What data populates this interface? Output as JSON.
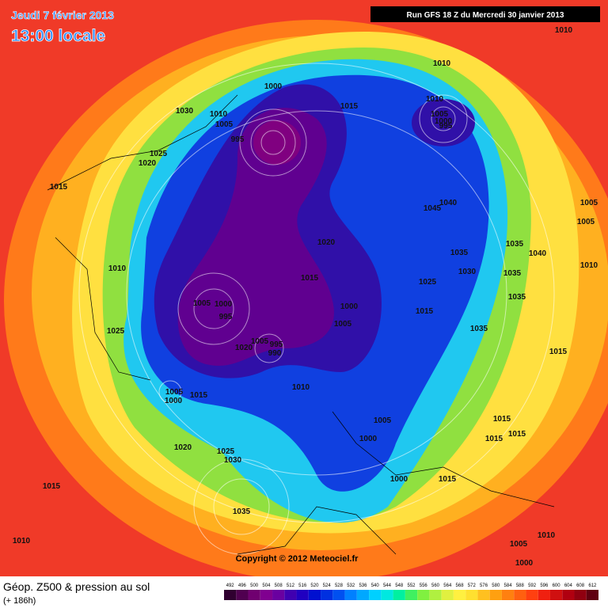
{
  "header": {
    "date": "Jeudi 7 février 2013",
    "time": "13:00 locale",
    "run": "Run GFS 18 Z du Mercredi 30 janvier 2013"
  },
  "map": {
    "copyright": "Copyright © 2012 Meteociel.fr",
    "pressure_labels": [
      1010,
      1010,
      1000,
      1015,
      1030,
      1010,
      1005,
      1010,
      1005,
      1000,
      995,
      995,
      1025,
      1020,
      1015,
      1040,
      1045,
      1005,
      1005,
      1035,
      1040,
      1020,
      1035,
      1010,
      1015,
      1030,
      1025,
      1035,
      1010,
      1005,
      1000,
      1035,
      1000,
      1015,
      995,
      1005,
      1035,
      1025,
      1005,
      995,
      1020,
      990,
      1015,
      1010,
      1005,
      1015,
      1000,
      1005,
      1015,
      1015,
      1000,
      1015,
      1020,
      1025,
      1030,
      1015,
      1000,
      1015,
      1035,
      1010,
      1010,
      1005,
      1000
    ]
  },
  "legend": {
    "title": "Géop. Z500 & pression au sol",
    "lead_time": "(+ 186h)",
    "scale": [
      492,
      496,
      500,
      504,
      508,
      512,
      516,
      520,
      524,
      528,
      532,
      536,
      540,
      544,
      548,
      552,
      556,
      560,
      564,
      568,
      572,
      576,
      580,
      584,
      588,
      592,
      596,
      600,
      604,
      608,
      612
    ],
    "colors": [
      "#300030",
      "#500050",
      "#700070",
      "#800090",
      "#6a00a0",
      "#4000b0",
      "#2000c0",
      "#0010d0",
      "#0030e0",
      "#0050f0",
      "#0080ff",
      "#00a8ff",
      "#00d0ff",
      "#00e8e0",
      "#00f0a0",
      "#40f060",
      "#80f040",
      "#b0f040",
      "#e0f040",
      "#fff040",
      "#ffe030",
      "#ffc020",
      "#ffa010",
      "#ff8010",
      "#ff6010",
      "#ff4010",
      "#f02010",
      "#d01010",
      "#b00010",
      "#900010",
      "#600010"
    ]
  }
}
